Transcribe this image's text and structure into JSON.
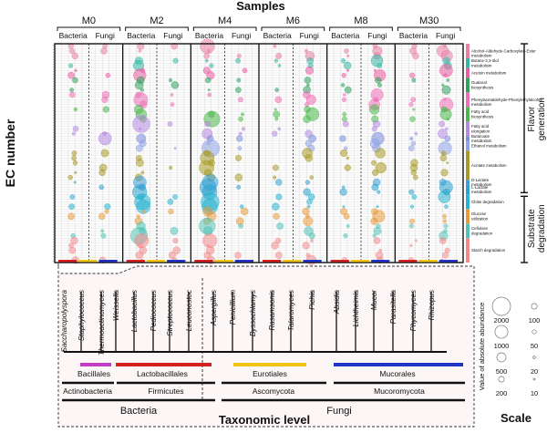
{
  "chart_data": {
    "type": "scatter",
    "title": "Samples",
    "ylabel": "EC number",
    "xlabel": "Taxonomic level",
    "sample_groups": [
      {
        "label": "M0",
        "subgroups": [
          "Bacteria",
          "Fungi"
        ]
      },
      {
        "label": "M2",
        "subgroups": [
          "Bacteria",
          "Fungi"
        ]
      },
      {
        "label": "M4",
        "subgroups": [
          "Bacteria",
          "Fungi"
        ]
      },
      {
        "label": "M6",
        "subgroups": [
          "Bacteria",
          "Fungi"
        ]
      },
      {
        "label": "M8",
        "subgroups": [
          "Bacteria",
          "Fungi"
        ]
      },
      {
        "label": "M30",
        "subgroups": [
          "Bacteria",
          "Fungi"
        ]
      }
    ],
    "pathways": [
      {
        "label": "Alcohol-Aldehyde-Carboxylate-Ester metabolism",
        "color": "#e87fa5",
        "rows": 3
      },
      {
        "label": "Butane-2,3-diol metabolism",
        "color": "#36b8a6",
        "rows": 2
      },
      {
        "label": "Acetoin metabolism",
        "color": "#ea5ba2",
        "rows": 2
      },
      {
        "label": "Guaiacol biosynthesis",
        "color": "#2fa35e",
        "rows": 3
      },
      {
        "label": "Phenylacetaldehyde-Phenylethylalcohol metabolism",
        "color": "#ee6fb8",
        "rows": 3
      },
      {
        "label": "Fatty acid biosynthesis",
        "color": "#4cb84a",
        "rows": 3
      },
      {
        "label": "Fatty acid elongation",
        "color": "#b58be0",
        "rows": 3
      },
      {
        "label": "Butanoate metabolism",
        "color": "#7a8cd9",
        "rows": 1
      },
      {
        "label": "Ethanol metabolism",
        "color": "#8fa3e6",
        "rows": 2
      },
      {
        "label": "Acetate metabolism",
        "color": "#a79a28",
        "rows": 6
      },
      {
        "label": "D-Lactate metabolism",
        "color": "#3d9fd6",
        "rows": 1
      },
      {
        "label": "L-Lactate metabolism",
        "color": "#2ca2cf",
        "rows": 2
      },
      {
        "label": "Chitin degradation",
        "color": "#28b3d0",
        "rows": 3
      },
      {
        "label": "Glucose utilization",
        "color": "#e79b3b",
        "rows": 3
      },
      {
        "label": "Cellulose degradation",
        "color": "#52c2b8",
        "rows": 3
      },
      {
        "label": "Starch degradation",
        "color": "#f08a8a",
        "rows": 5
      }
    ],
    "categories_right": [
      {
        "label": "Flavor generation"
      },
      {
        "label": "Substrate degradation"
      }
    ],
    "taxa": [
      "Saccharopolyspora",
      "Staphylococcus",
      "Thermoactinomyces",
      "Weissella",
      "Lactobacillus",
      "Pediococcus",
      "Streptococcus",
      "Leuconostoc",
      "Aspergillus",
      "Penicillium",
      "Byssochlamys",
      "Rasamsonia",
      "Talaromyces",
      "Pichia",
      "Absidia",
      "Lichtheimia",
      "Mucor",
      "Parasitella",
      "Phycomyces",
      "Rhizopus"
    ],
    "orders": [
      {
        "label": "Bacillales",
        "color": "#c23cc8"
      },
      {
        "label": "Lactobacillales",
        "color": "#d42020"
      },
      {
        "label": "Eurotiales",
        "color": "#f0c419"
      },
      {
        "label": "Mucorales",
        "color": "#2233c8"
      }
    ],
    "phyla": [
      {
        "label": "Actinobacteria"
      },
      {
        "label": "Firmicutes"
      },
      {
        "label": "Ascomycota"
      },
      {
        "label": "Mucoromycota"
      }
    ],
    "kingdoms": [
      {
        "label": "Bacteria"
      },
      {
        "label": "Fungi"
      }
    ],
    "scale": {
      "title": "Scale",
      "axis_label": "Value of absolute abundance",
      "left": [
        2000,
        1000,
        500,
        200
      ],
      "right": [
        100,
        50,
        20,
        10
      ]
    }
  }
}
